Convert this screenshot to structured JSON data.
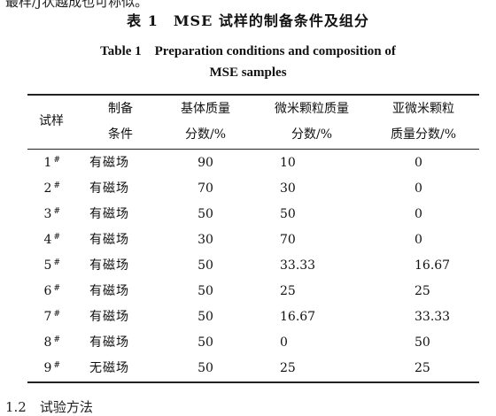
{
  "top_fragment": "最样/J状越成也可称似。",
  "caption_cn": "表 1　MSE 试样的制备条件及组分",
  "caption_en_line1": "Table 1　Preparation conditions and composition of",
  "caption_en_line2": "MSE samples",
  "headers": [
    [
      "试样"
    ],
    [
      "制备",
      "条件"
    ],
    [
      "基体质量",
      "分数/%"
    ],
    [
      "微米颗粒质量",
      "分数/%"
    ],
    [
      "亚微米颗粒",
      "质量分数/%"
    ]
  ],
  "rows": [
    [
      "1",
      "#",
      "有磁场",
      "90",
      "10",
      "0"
    ],
    [
      "2",
      "#",
      "有磁场",
      "70",
      "30",
      "0"
    ],
    [
      "3",
      "#",
      "有磁场",
      "50",
      "50",
      "0"
    ],
    [
      "4",
      "#",
      "有磁场",
      "30",
      "70",
      "0"
    ],
    [
      "5",
      "#",
      "有磁场",
      "50",
      "33.33",
      "16.67"
    ],
    [
      "6",
      "#",
      "有磁场",
      "50",
      "25",
      "25"
    ],
    [
      "7",
      "#",
      "有磁场",
      "50",
      "16.67",
      "33.33"
    ],
    [
      "8",
      "#",
      "有磁场",
      "50",
      "0",
      "50"
    ],
    [
      "9",
      "#",
      "无磁场",
      "50",
      "25",
      "25"
    ]
  ],
  "bottom_fragment": "1.2　试验方法"
}
